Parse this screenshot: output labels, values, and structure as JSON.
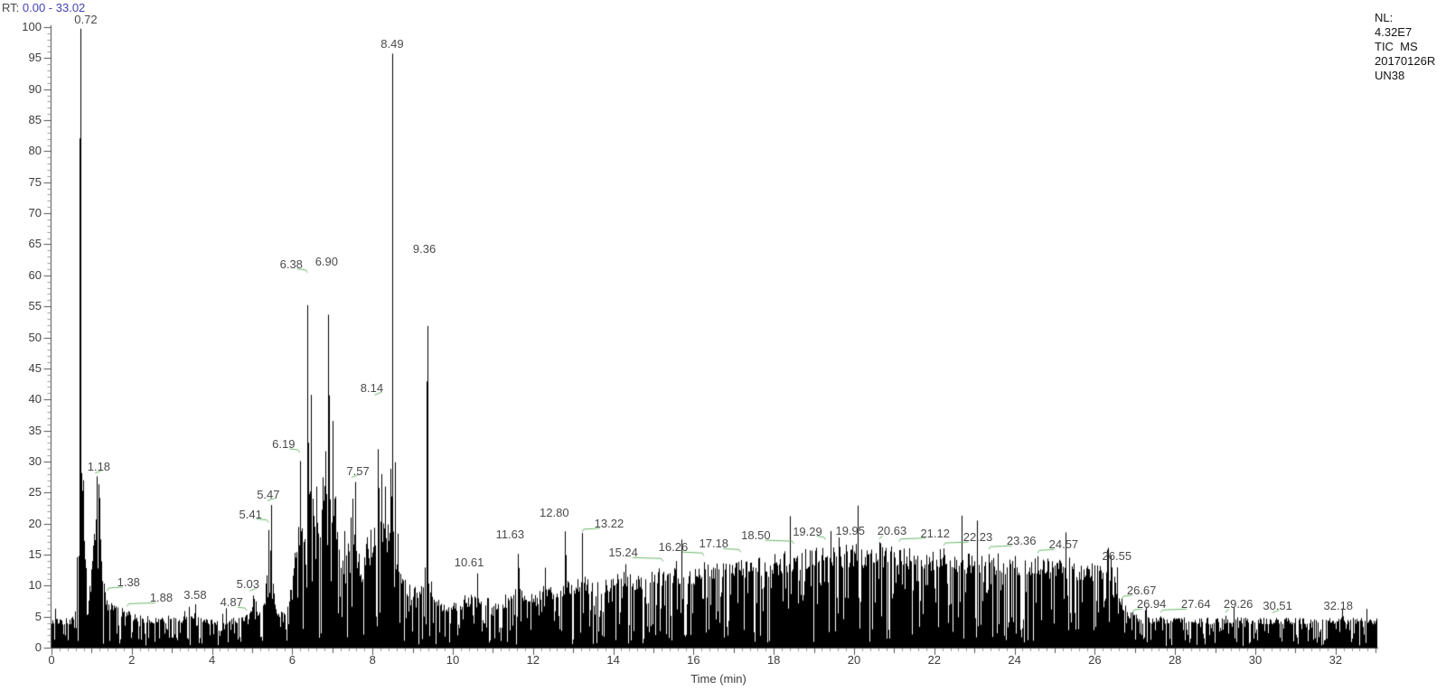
{
  "header": {
    "rt_label": "RT:",
    "rt_range": "0.00 - 33.02"
  },
  "info_panel": {
    "lines": [
      "NL:",
      "4.32E7",
      "TIC  MS",
      "20170126R",
      "UN38"
    ]
  },
  "colors": {
    "trace": "#000000",
    "peak_label": "#4a4a4a",
    "leader_green": "#6cb86c",
    "axis": "#4a4a4a",
    "tick_major": "#555555",
    "tick_minor": "#999999",
    "rt_range_blue": "#4343b2"
  },
  "chart_data": {
    "type": "line",
    "title": "",
    "xlabel": "Time (min)",
    "ylabel": "",
    "x_range": [
      0,
      33.02
    ],
    "y_range": [
      0,
      100
    ],
    "grid": false,
    "legend": "none",
    "x_tick_labels": [
      "0",
      "2",
      "4",
      "6",
      "8",
      "10",
      "12",
      "14",
      "16",
      "18",
      "20",
      "22",
      "24",
      "26",
      "28",
      "30",
      "32"
    ],
    "y_tick_labels": [
      "0",
      "5",
      "10",
      "15",
      "20",
      "25",
      "30",
      "35",
      "40",
      "45",
      "50",
      "55",
      "60",
      "65",
      "70",
      "75",
      "80",
      "85",
      "90",
      "95",
      "100"
    ],
    "x_major_step": 2,
    "x_mid_step": 1,
    "x_minor_step": 0.2,
    "y_major_step": 5,
    "y_minor_step": 1,
    "noise_seed": 12345,
    "peaks": [
      {
        "rt": 0.72,
        "height": 100,
        "w": 0.01,
        "label": "0.72",
        "dx": 6,
        "dy": 0,
        "leader": 0
      },
      {
        "rt": 1.18,
        "height": 28,
        "w": 0.025,
        "label": "1.18",
        "dx": 0,
        "dy": 0,
        "leader": 1
      },
      {
        "rt": 1.38,
        "height": 8,
        "w": 0.02,
        "label": "1.38",
        "dx": 24,
        "dy": -9,
        "leader": 1
      },
      {
        "rt": 1.88,
        "height": 6.2,
        "w": 0.02,
        "label": "1.88",
        "dx": 38,
        "dy": -4,
        "leader": 1
      },
      {
        "rt": 3.58,
        "height": 7,
        "w": 0.02,
        "label": "3.58",
        "dx": 0,
        "dy": -2,
        "leader": 0
      },
      {
        "rt": 4.87,
        "height": 5.5,
        "w": 0.02,
        "label": "4.87",
        "dx": -17,
        "dy": -4,
        "leader": 1
      },
      {
        "rt": 5.03,
        "height": 9,
        "w": 0.02,
        "label": "5.03",
        "dx": -6,
        "dy": 0,
        "leader": 1
      },
      {
        "rt": 5.41,
        "height": 20,
        "w": 0.014,
        "label": "5.41",
        "dx": -20,
        "dy": -2,
        "leader": 1
      },
      {
        "rt": 5.47,
        "height": 23.5,
        "w": 0.014,
        "label": "5.47",
        "dx": -3,
        "dy": 0,
        "leader": 1
      },
      {
        "rt": 6.19,
        "height": 31,
        "w": 0.015,
        "label": "6.19",
        "dx": -18,
        "dy": -4,
        "leader": 1
      },
      {
        "rt": 6.38,
        "height": 60,
        "w": 0.015,
        "label": "6.38",
        "dx": -18,
        "dy": -4,
        "leader": 1
      },
      {
        "rt": 6.9,
        "height": 61,
        "w": 0.016,
        "label": "6.90",
        "dx": -2,
        "dy": 0,
        "leader": 0
      },
      {
        "rt": 7.57,
        "height": 27,
        "w": 0.016,
        "label": "7.57",
        "dx": 3,
        "dy": -2,
        "leader": 1
      },
      {
        "rt": 8.14,
        "height": 40,
        "w": 0.014,
        "label": "8.14",
        "dx": -7,
        "dy": -4,
        "leader": 1
      },
      {
        "rt": 8.49,
        "height": 96,
        "w": 0.013,
        "label": "8.49",
        "dx": 0,
        "dy": 0,
        "leader": 0
      },
      {
        "rt": 9.36,
        "height": 63,
        "w": 0.015,
        "label": "9.36",
        "dx": -3,
        "dy": 0,
        "leader": 0
      },
      {
        "rt": 10.61,
        "height": 12,
        "w": 0.022,
        "label": "10.61",
        "dx": -9,
        "dy": -4,
        "leader": 0
      },
      {
        "rt": 11.63,
        "height": 16.5,
        "w": 0.02,
        "label": "11.63",
        "dx": -9,
        "dy": -4,
        "leader": 0
      },
      {
        "rt": 12.8,
        "height": 20,
        "w": 0.02,
        "label": "12.80",
        "dx": -12,
        "dy": -4,
        "leader": 0
      },
      {
        "rt": 13.22,
        "height": 18.5,
        "w": 0.015,
        "label": "13.22",
        "dx": 30,
        "dy": -2,
        "leader": 1
      },
      {
        "rt": 15.24,
        "height": 13.2,
        "w": 0.02,
        "label": "15.24",
        "dx": -44,
        "dy": -6,
        "leader": 1
      },
      {
        "rt": 16.26,
        "height": 13.8,
        "w": 0.02,
        "label": "16.26",
        "dx": -34,
        "dy": -8,
        "leader": 1
      },
      {
        "rt": 17.18,
        "height": 14.5,
        "w": 0.02,
        "label": "17.18",
        "dx": -30,
        "dy": -7,
        "leader": 1
      },
      {
        "rt": 18.5,
        "height": 16,
        "w": 0.02,
        "label": "18.50",
        "dx": -42,
        "dy": -6,
        "leader": 1
      },
      {
        "rt": 19.29,
        "height": 16.8,
        "w": 0.02,
        "label": "19.29",
        "dx": -20,
        "dy": -5,
        "leader": 1
      },
      {
        "rt": 19.95,
        "height": 17,
        "w": 0.02,
        "label": "19.95",
        "dx": -2,
        "dy": -4,
        "leader": 0
      },
      {
        "rt": 20.63,
        "height": 17,
        "w": 0.02,
        "label": "20.63",
        "dx": 14,
        "dy": -4,
        "leader": 1
      },
      {
        "rt": 21.12,
        "height": 16.5,
        "w": 0.02,
        "label": "21.12",
        "dx": 40,
        "dy": -5,
        "leader": 1
      },
      {
        "rt": 22.23,
        "height": 16,
        "w": 0.02,
        "label": "22.23",
        "dx": 38,
        "dy": -4,
        "leader": 1
      },
      {
        "rt": 23.36,
        "height": 15.4,
        "w": 0.02,
        "label": "23.36",
        "dx": 36,
        "dy": -4,
        "leader": 1
      },
      {
        "rt": 24.57,
        "height": 14.8,
        "w": 0.02,
        "label": "24.57",
        "dx": 29,
        "dy": -4,
        "leader": 1
      },
      {
        "rt": 26.55,
        "height": 13.2,
        "w": 0.02,
        "label": "26.55",
        "dx": 0,
        "dy": -2,
        "leader": 0
      },
      {
        "rt": 26.67,
        "height": 8,
        "w": 0.02,
        "label": "26.67",
        "dx": 22,
        "dy": 0,
        "leader": 1
      },
      {
        "rt": 26.94,
        "height": 5.8,
        "w": 0.02,
        "label": "26.94",
        "dx": 21,
        "dy": 0,
        "leader": 1
      },
      {
        "rt": 27.64,
        "height": 5.2,
        "w": 0.02,
        "label": "27.64",
        "dx": 39,
        "dy": -4,
        "leader": 1
      },
      {
        "rt": 29.26,
        "height": 5.2,
        "w": 0.02,
        "label": "29.26",
        "dx": 14,
        "dy": -4,
        "leader": 1
      },
      {
        "rt": 30.51,
        "height": 5.2,
        "w": 0.02,
        "label": "30.51",
        "dx": 2,
        "dy": -2,
        "leader": 1
      },
      {
        "rt": 32.18,
        "height": 5.2,
        "w": 0.02,
        "label": "32.18",
        "dx": -5,
        "dy": -2,
        "leader": 0
      }
    ],
    "minor_spikes": [
      [
        0.7,
        83,
        0.012
      ],
      [
        0.78,
        30,
        0.018
      ],
      [
        1.1,
        21,
        0.02
      ],
      [
        1.22,
        18,
        0.015
      ],
      [
        2.2,
        5.8,
        0.015
      ],
      [
        2.9,
        5.5,
        0.015
      ],
      [
        4.35,
        6.5,
        0.015
      ],
      [
        5.35,
        16,
        0.013
      ],
      [
        6.05,
        18,
        0.015
      ],
      [
        6.46,
        42,
        0.016
      ],
      [
        6.6,
        26,
        0.015
      ],
      [
        6.75,
        30,
        0.016
      ],
      [
        6.82,
        33,
        0.015
      ],
      [
        7.0,
        38,
        0.016
      ],
      [
        7.08,
        28,
        0.015
      ],
      [
        7.3,
        19,
        0.018
      ],
      [
        7.45,
        22,
        0.016
      ],
      [
        7.5,
        24,
        0.014
      ],
      [
        7.85,
        21,
        0.018
      ],
      [
        7.95,
        19,
        0.015
      ],
      [
        8.05,
        23,
        0.016
      ],
      [
        8.22,
        28,
        0.016
      ],
      [
        8.31,
        26,
        0.014
      ],
      [
        8.44,
        32,
        0.013
      ],
      [
        8.56,
        30,
        0.016
      ],
      [
        8.63,
        19,
        0.015
      ],
      [
        9.3,
        13,
        0.015
      ],
      [
        9.45,
        13,
        0.015
      ],
      [
        10.3,
        9,
        0.02
      ],
      [
        11.3,
        9,
        0.02
      ],
      [
        12.3,
        13,
        0.02
      ],
      [
        13.8,
        11.5,
        0.02
      ],
      [
        14.3,
        13.5,
        0.02
      ]
    ],
    "envelope": [
      [
        0,
        4.5
      ],
      [
        0.5,
        4.8
      ],
      [
        0.58,
        6
      ],
      [
        0.62,
        12
      ],
      [
        0.66,
        22
      ],
      [
        0.7,
        26
      ],
      [
        0.75,
        28
      ],
      [
        0.82,
        20
      ],
      [
        0.88,
        8
      ],
      [
        0.95,
        10
      ],
      [
        1.05,
        18
      ],
      [
        1.12,
        22
      ],
      [
        1.18,
        26
      ],
      [
        1.25,
        12
      ],
      [
        1.35,
        8
      ],
      [
        1.5,
        7
      ],
      [
        1.7,
        6.5
      ],
      [
        1.88,
        6
      ],
      [
        2.1,
        5.2
      ],
      [
        2.5,
        5
      ],
      [
        3.0,
        4.8
      ],
      [
        3.45,
        5
      ],
      [
        3.58,
        6.5
      ],
      [
        3.7,
        4.8
      ],
      [
        4.2,
        4.5
      ],
      [
        4.6,
        4.8
      ],
      [
        4.87,
        5.2
      ],
      [
        5.0,
        7
      ],
      [
        5.06,
        8.5
      ],
      [
        5.15,
        5.5
      ],
      [
        5.3,
        8
      ],
      [
        5.41,
        14
      ],
      [
        5.47,
        16
      ],
      [
        5.56,
        7
      ],
      [
        5.7,
        5.5
      ],
      [
        5.85,
        7
      ],
      [
        5.95,
        10
      ],
      [
        6.05,
        14
      ],
      [
        6.15,
        20
      ],
      [
        6.22,
        22
      ],
      [
        6.3,
        18
      ],
      [
        6.38,
        26
      ],
      [
        6.46,
        30
      ],
      [
        6.55,
        22
      ],
      [
        6.65,
        20
      ],
      [
        6.75,
        24
      ],
      [
        6.85,
        28
      ],
      [
        6.95,
        26
      ],
      [
        7.05,
        24
      ],
      [
        7.15,
        17
      ],
      [
        7.25,
        14
      ],
      [
        7.35,
        16
      ],
      [
        7.45,
        18
      ],
      [
        7.55,
        18
      ],
      [
        7.65,
        15
      ],
      [
        7.75,
        13
      ],
      [
        7.85,
        16
      ],
      [
        7.95,
        15
      ],
      [
        8.05,
        18
      ],
      [
        8.15,
        22
      ],
      [
        8.25,
        20
      ],
      [
        8.35,
        18
      ],
      [
        8.45,
        24
      ],
      [
        8.55,
        18
      ],
      [
        8.65,
        13
      ],
      [
        8.8,
        11
      ],
      [
        9.0,
        9.5
      ],
      [
        9.15,
        10
      ],
      [
        9.3,
        11
      ],
      [
        9.45,
        10
      ],
      [
        9.6,
        8
      ],
      [
        9.8,
        7
      ],
      [
        10.1,
        7.5
      ],
      [
        10.35,
        8
      ],
      [
        10.61,
        9
      ],
      [
        10.8,
        8
      ],
      [
        11.1,
        7.5
      ],
      [
        11.4,
        8
      ],
      [
        11.63,
        10
      ],
      [
        11.8,
        8.5
      ],
      [
        12.1,
        8.5
      ],
      [
        12.3,
        11
      ],
      [
        12.5,
        9
      ],
      [
        12.7,
        10
      ],
      [
        12.85,
        12
      ],
      [
        13.0,
        10
      ],
      [
        13.22,
        12
      ],
      [
        13.4,
        10.5
      ],
      [
        13.6,
        10.5
      ],
      [
        13.9,
        11
      ],
      [
        14.15,
        12
      ],
      [
        14.35,
        12.5
      ],
      [
        14.6,
        11.5
      ],
      [
        14.9,
        12
      ],
      [
        15.24,
        12.8
      ],
      [
        15.6,
        12.5
      ],
      [
        16.0,
        13
      ],
      [
        16.26,
        13.3
      ],
      [
        16.7,
        13.4
      ],
      [
        17.18,
        14
      ],
      [
        17.6,
        14.3
      ],
      [
        18.0,
        14.8
      ],
      [
        18.5,
        15.6
      ],
      [
        18.9,
        16
      ],
      [
        19.29,
        16.4
      ],
      [
        19.6,
        16.3
      ],
      [
        19.95,
        16.6
      ],
      [
        20.3,
        16.4
      ],
      [
        20.63,
        16.6
      ],
      [
        21.0,
        16.2
      ],
      [
        21.4,
        16
      ],
      [
        21.8,
        15.8
      ],
      [
        22.23,
        15.7
      ],
      [
        22.6,
        15.2
      ],
      [
        23.0,
        15.1
      ],
      [
        23.36,
        15.1
      ],
      [
        23.7,
        14.8
      ],
      [
        24.1,
        14.5
      ],
      [
        24.57,
        14.5
      ],
      [
        25.0,
        14
      ],
      [
        25.4,
        13.8
      ],
      [
        25.8,
        13.5
      ],
      [
        26.2,
        13.1
      ],
      [
        26.45,
        13
      ],
      [
        26.55,
        12.5
      ],
      [
        26.62,
        9
      ],
      [
        26.7,
        7.5
      ],
      [
        26.85,
        6
      ],
      [
        26.94,
        5.5
      ],
      [
        27.1,
        5
      ],
      [
        27.5,
        4.8
      ],
      [
        33.02,
        4.8
      ]
    ]
  }
}
